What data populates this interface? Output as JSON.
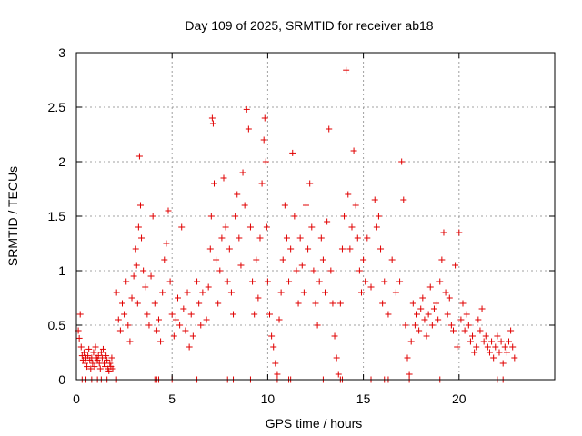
{
  "chart_data": {
    "type": "scatter",
    "title": "Day 109 of 2025, SRMTID for receiver ab18",
    "xlabel": "GPS time / hours",
    "ylabel": "SRMTID / TECUs",
    "xlim": [
      0,
      25
    ],
    "ylim": [
      0,
      3
    ],
    "x_ticks": [
      0,
      5,
      10,
      15,
      20
    ],
    "x_tick_labels": [
      "0",
      "5",
      "10",
      "15",
      "20"
    ],
    "y_ticks": [
      0,
      0.5,
      1,
      1.5,
      2,
      2.5,
      3
    ],
    "y_tick_labels": [
      "0",
      "0.5",
      "1",
      "1.5",
      "2",
      "2.5",
      "3"
    ],
    "grid": true,
    "marker": "+",
    "series_color": "#e00000",
    "series": [
      {
        "name": "SRMTID",
        "points": [
          [
            0.1,
            0.45
          ],
          [
            0.15,
            0.38
          ],
          [
            0.2,
            0.6
          ],
          [
            0.25,
            0.3
          ],
          [
            0.3,
            0.22
          ],
          [
            0.35,
            0.18
          ],
          [
            0.4,
            0.25
          ],
          [
            0.45,
            0.15
          ],
          [
            0.5,
            0.2
          ],
          [
            0.55,
            0.12
          ],
          [
            0.6,
            0.22
          ],
          [
            0.65,
            0.28
          ],
          [
            0.7,
            0.18
          ],
          [
            0.75,
            0.1
          ],
          [
            0.8,
            0.2
          ],
          [
            0.85,
            0.15
          ],
          [
            0.9,
            0.25
          ],
          [
            0.95,
            0.12
          ],
          [
            1.0,
            0.3
          ],
          [
            1.05,
            0.2
          ],
          [
            1.1,
            0.18
          ],
          [
            1.15,
            0.22
          ],
          [
            1.2,
            0.15
          ],
          [
            1.25,
            0.1
          ],
          [
            1.3,
            0.25
          ],
          [
            1.35,
            0.2
          ],
          [
            1.4,
            0.28
          ],
          [
            1.45,
            0.15
          ],
          [
            1.5,
            0.12
          ],
          [
            1.55,
            0.22
          ],
          [
            1.6,
            0.18
          ],
          [
            1.65,
            0.1
          ],
          [
            1.7,
            0.08
          ],
          [
            1.75,
            0.15
          ],
          [
            1.8,
            0.12
          ],
          [
            1.85,
            0.2
          ],
          [
            1.9,
            0.1
          ],
          [
            2.1,
            0.8
          ],
          [
            2.2,
            0.55
          ],
          [
            2.3,
            0.45
          ],
          [
            2.4,
            0.7
          ],
          [
            2.5,
            0.6
          ],
          [
            2.6,
            0.9
          ],
          [
            2.7,
            0.5
          ],
          [
            2.8,
            0.35
          ],
          [
            2.9,
            0.75
          ],
          [
            3.0,
            0.95
          ],
          [
            3.1,
            1.2
          ],
          [
            3.15,
            1.05
          ],
          [
            3.2,
            0.7
          ],
          [
            3.25,
            1.4
          ],
          [
            3.3,
            2.05
          ],
          [
            3.35,
            1.6
          ],
          [
            3.4,
            1.3
          ],
          [
            3.5,
            1.0
          ],
          [
            3.6,
            0.85
          ],
          [
            3.7,
            0.6
          ],
          [
            3.8,
            0.5
          ],
          [
            3.9,
            0.95
          ],
          [
            4.0,
            1.5
          ],
          [
            4.1,
            0.7
          ],
          [
            4.2,
            0.45
          ],
          [
            4.3,
            0.55
          ],
          [
            4.4,
            0.35
          ],
          [
            4.5,
            0.8
          ],
          [
            4.6,
            1.1
          ],
          [
            4.7,
            1.25
          ],
          [
            4.8,
            1.55
          ],
          [
            4.9,
            0.9
          ],
          [
            5.0,
            0.6
          ],
          [
            5.1,
            0.4
          ],
          [
            5.2,
            0.55
          ],
          [
            5.3,
            0.75
          ],
          [
            5.4,
            0.5
          ],
          [
            5.5,
            1.4
          ],
          [
            5.6,
            0.65
          ],
          [
            5.7,
            0.45
          ],
          [
            5.8,
            0.8
          ],
          [
            5.9,
            0.3
          ],
          [
            6.0,
            0.6
          ],
          [
            6.1,
            0.4
          ],
          [
            6.3,
            0.9
          ],
          [
            6.4,
            0.7
          ],
          [
            6.5,
            0.5
          ],
          [
            6.6,
            0.8
          ],
          [
            6.8,
            0.55
          ],
          [
            6.9,
            0.85
          ],
          [
            7.0,
            1.2
          ],
          [
            7.05,
            1.5
          ],
          [
            7.1,
            2.4
          ],
          [
            7.15,
            2.35
          ],
          [
            7.2,
            1.8
          ],
          [
            7.3,
            1.1
          ],
          [
            7.4,
            0.7
          ],
          [
            7.5,
            1.0
          ],
          [
            7.6,
            1.3
          ],
          [
            7.7,
            1.85
          ],
          [
            7.8,
            1.4
          ],
          [
            7.9,
            0.9
          ],
          [
            8.0,
            1.2
          ],
          [
            8.1,
            0.8
          ],
          [
            8.2,
            0.6
          ],
          [
            8.3,
            1.5
          ],
          [
            8.4,
            1.7
          ],
          [
            8.5,
            1.3
          ],
          [
            8.6,
            1.05
          ],
          [
            8.7,
            1.9
          ],
          [
            8.8,
            1.6
          ],
          [
            8.9,
            2.48
          ],
          [
            9.0,
            2.3
          ],
          [
            9.1,
            1.4
          ],
          [
            9.2,
            0.9
          ],
          [
            9.3,
            0.6
          ],
          [
            9.4,
            1.1
          ],
          [
            9.5,
            0.75
          ],
          [
            9.6,
            1.3
          ],
          [
            9.7,
            1.8
          ],
          [
            9.8,
            2.2
          ],
          [
            9.85,
            2.4
          ],
          [
            9.9,
            2.0
          ],
          [
            9.95,
            1.4
          ],
          [
            10.0,
            0.9
          ],
          [
            10.1,
            0.6
          ],
          [
            10.2,
            0.4
          ],
          [
            10.3,
            0.3
          ],
          [
            10.4,
            0.15
          ],
          [
            10.5,
            0.05
          ],
          [
            10.6,
            0.55
          ],
          [
            10.7,
            0.8
          ],
          [
            10.8,
            1.1
          ],
          [
            10.9,
            1.6
          ],
          [
            11.0,
            1.3
          ],
          [
            11.1,
            0.9
          ],
          [
            11.2,
            1.2
          ],
          [
            11.3,
            2.08
          ],
          [
            11.4,
            1.5
          ],
          [
            11.5,
            1.0
          ],
          [
            11.6,
            0.7
          ],
          [
            11.7,
            1.3
          ],
          [
            11.8,
            1.05
          ],
          [
            11.9,
            0.8
          ],
          [
            12.0,
            1.6
          ],
          [
            12.1,
            1.2
          ],
          [
            12.2,
            1.8
          ],
          [
            12.3,
            1.4
          ],
          [
            12.4,
            1.0
          ],
          [
            12.5,
            0.7
          ],
          [
            12.6,
            0.5
          ],
          [
            12.7,
            0.9
          ],
          [
            12.8,
            1.3
          ],
          [
            12.9,
            1.1
          ],
          [
            13.0,
            0.8
          ],
          [
            13.1,
            1.45
          ],
          [
            13.2,
            2.3
          ],
          [
            13.3,
            1.0
          ],
          [
            13.4,
            0.7
          ],
          [
            13.5,
            0.4
          ],
          [
            13.6,
            0.2
          ],
          [
            13.7,
            0.05
          ],
          [
            13.8,
            0.7
          ],
          [
            13.9,
            1.2
          ],
          [
            14.0,
            1.5
          ],
          [
            14.1,
            2.84
          ],
          [
            14.2,
            1.7
          ],
          [
            14.3,
            1.2
          ],
          [
            14.4,
            1.4
          ],
          [
            14.5,
            2.1
          ],
          [
            14.6,
            1.6
          ],
          [
            14.7,
            1.3
          ],
          [
            14.8,
            1.0
          ],
          [
            14.9,
            0.8
          ],
          [
            15.0,
            1.1
          ],
          [
            15.1,
            0.9
          ],
          [
            15.2,
            1.3
          ],
          [
            15.4,
            0.85
          ],
          [
            15.6,
            1.65
          ],
          [
            15.7,
            1.4
          ],
          [
            15.8,
            1.5
          ],
          [
            15.9,
            1.2
          ],
          [
            16.0,
            0.7
          ],
          [
            16.1,
            0.9
          ],
          [
            16.3,
            0.6
          ],
          [
            16.5,
            1.1
          ],
          [
            16.7,
            0.8
          ],
          [
            16.9,
            0.9
          ],
          [
            17.0,
            2.0
          ],
          [
            17.1,
            1.65
          ],
          [
            17.2,
            0.5
          ],
          [
            17.3,
            0.2
          ],
          [
            17.4,
            0.05
          ],
          [
            17.5,
            0.35
          ],
          [
            17.6,
            0.7
          ],
          [
            17.7,
            0.5
          ],
          [
            17.8,
            0.6
          ],
          [
            17.9,
            0.45
          ],
          [
            18.0,
            0.65
          ],
          [
            18.1,
            0.75
          ],
          [
            18.2,
            0.55
          ],
          [
            18.3,
            0.4
          ],
          [
            18.4,
            0.6
          ],
          [
            18.5,
            0.85
          ],
          [
            18.6,
            0.5
          ],
          [
            18.7,
            0.65
          ],
          [
            18.8,
            0.7
          ],
          [
            18.9,
            0.55
          ],
          [
            19.0,
            0.9
          ],
          [
            19.1,
            1.1
          ],
          [
            19.2,
            1.35
          ],
          [
            19.3,
            0.8
          ],
          [
            19.4,
            0.6
          ],
          [
            19.5,
            0.75
          ],
          [
            19.6,
            0.5
          ],
          [
            19.7,
            0.45
          ],
          [
            19.8,
            1.05
          ],
          [
            19.9,
            0.3
          ],
          [
            20.0,
            1.35
          ],
          [
            20.1,
            0.55
          ],
          [
            20.2,
            0.7
          ],
          [
            20.3,
            0.45
          ],
          [
            20.4,
            0.6
          ],
          [
            20.5,
            0.5
          ],
          [
            20.6,
            0.35
          ],
          [
            20.7,
            0.4
          ],
          [
            20.8,
            0.25
          ],
          [
            20.9,
            0.3
          ],
          [
            21.0,
            0.55
          ],
          [
            21.1,
            0.45
          ],
          [
            21.2,
            0.65
          ],
          [
            21.3,
            0.35
          ],
          [
            21.4,
            0.4
          ],
          [
            21.5,
            0.3
          ],
          [
            21.6,
            0.25
          ],
          [
            21.7,
            0.35
          ],
          [
            21.8,
            0.2
          ],
          [
            21.9,
            0.3
          ],
          [
            22.0,
            0.4
          ],
          [
            22.1,
            0.25
          ],
          [
            22.2,
            0.35
          ],
          [
            22.3,
            0.15
          ],
          [
            22.4,
            0.3
          ],
          [
            22.5,
            0.25
          ],
          [
            22.6,
            0.35
          ],
          [
            22.7,
            0.45
          ],
          [
            22.8,
            0.3
          ],
          [
            22.9,
            0.2
          ],
          [
            0.3,
            0.0
          ],
          [
            0.5,
            0.0
          ],
          [
            0.8,
            0.0
          ],
          [
            1.1,
            0.0
          ],
          [
            1.3,
            0.0
          ],
          [
            1.6,
            0.0
          ],
          [
            2.1,
            0.0
          ],
          [
            4.1,
            0.0
          ],
          [
            4.2,
            0.0
          ],
          [
            4.3,
            0.0
          ],
          [
            5.0,
            0.0
          ],
          [
            6.3,
            0.0
          ],
          [
            7.9,
            0.0
          ],
          [
            8.2,
            0.0
          ],
          [
            9.1,
            0.0
          ],
          [
            10.5,
            0.0
          ],
          [
            11.1,
            0.0
          ],
          [
            11.2,
            0.0
          ],
          [
            12.9,
            0.0
          ],
          [
            13.8,
            0.0
          ],
          [
            13.9,
            0.0
          ],
          [
            15.4,
            0.0
          ],
          [
            16.1,
            0.0
          ],
          [
            16.3,
            0.0
          ],
          [
            17.4,
            0.0
          ],
          [
            19.0,
            0.0
          ],
          [
            22.0,
            0.0
          ],
          [
            22.3,
            0.0
          ]
        ]
      }
    ]
  }
}
